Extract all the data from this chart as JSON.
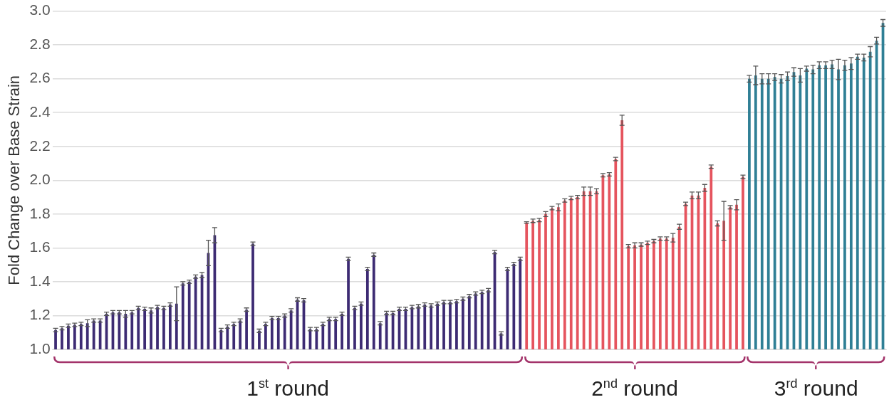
{
  "chart_data": {
    "type": "bar",
    "ylabel": "Fold Change over Base Strain",
    "ylim": [
      1.0,
      3.0
    ],
    "yticks": [
      {
        "value": 1.0,
        "label": "1.0"
      },
      {
        "value": 1.2,
        "label": "1.2"
      },
      {
        "value": 1.4,
        "label": "1.4"
      },
      {
        "value": 1.6,
        "label": "1.6"
      },
      {
        "value": 1.8,
        "label": "1.8"
      },
      {
        "value": 2.0,
        "label": "2.0"
      },
      {
        "value": 2.2,
        "label": "2.2"
      },
      {
        "value": 2.4,
        "label": "2.4"
      },
      {
        "value": 2.6,
        "label": "2.6"
      },
      {
        "value": 2.8,
        "label": "2.8"
      },
      {
        "value": 3.0,
        "label": "3.0"
      }
    ],
    "grid": "y",
    "legend": false,
    "categories": [
      null,
      null,
      null,
      null,
      null,
      null,
      null,
      null,
      null,
      null,
      null,
      null,
      null,
      null,
      null,
      null,
      null,
      null,
      null,
      null,
      null,
      null,
      null,
      null,
      null,
      null,
      null,
      null,
      null,
      null,
      null,
      null,
      null,
      null,
      null,
      null,
      null,
      null,
      null,
      null,
      null,
      null,
      null,
      null,
      null,
      null,
      null,
      null,
      null,
      null,
      null,
      null,
      null,
      null,
      null,
      null,
      null,
      null,
      null,
      null,
      null,
      null,
      null,
      null,
      null,
      null,
      null,
      null,
      null,
      null,
      null,
      null,
      null,
      null,
      null,
      null,
      null,
      null,
      null,
      null,
      null,
      null,
      null,
      null,
      null,
      null,
      null,
      null,
      null,
      null,
      null,
      null,
      null,
      null,
      null,
      null,
      null,
      null,
      null,
      null,
      null,
      null,
      null,
      null,
      null,
      null,
      null,
      null,
      null,
      null,
      null,
      null,
      null,
      null,
      null,
      null,
      null,
      null,
      null,
      null,
      null,
      null,
      null,
      null,
      null,
      null,
      null,
      null,
      null,
      null,
      null
    ],
    "series": [
      {
        "name": "1$^{st}$ round",
        "color": "#3d2b73",
        "values": [
          1.115,
          1.125,
          1.14,
          1.145,
          1.15,
          1.155,
          1.17,
          1.17,
          1.21,
          1.22,
          1.22,
          1.21,
          1.22,
          1.245,
          1.24,
          1.23,
          1.25,
          1.245,
          1.265,
          1.27,
          1.39,
          1.4,
          1.43,
          1.44,
          1.57,
          1.675,
          1.115,
          1.135,
          1.15,
          1.17,
          1.235,
          1.625,
          1.11,
          1.15,
          1.185,
          1.185,
          1.2,
          1.23,
          1.295,
          1.29,
          1.12,
          1.12,
          1.15,
          1.18,
          1.18,
          1.21,
          1.535,
          1.245,
          1.27,
          1.475,
          1.56,
          1.155,
          1.215,
          1.215,
          1.24,
          1.24,
          1.25,
          1.255,
          1.265,
          1.26,
          1.27,
          1.28,
          1.28,
          1.285,
          1.3,
          1.315,
          1.33,
          1.34,
          1.35,
          1.575,
          1.095,
          1.475,
          1.505,
          1.535,
          null,
          null,
          null,
          null,
          null,
          null,
          null,
          null,
          null,
          null,
          null,
          null,
          null,
          null,
          null,
          null,
          null,
          null,
          null,
          null,
          null,
          null,
          null,
          null,
          null,
          null,
          null,
          null,
          null,
          null,
          null,
          null,
          null,
          null,
          null,
          null,
          null,
          null,
          null,
          null,
          null,
          null,
          null,
          null,
          null,
          null,
          null,
          null,
          null,
          null,
          null,
          null,
          null,
          null,
          null,
          null,
          null
        ],
        "errors": [
          0.01,
          0.01,
          0.01,
          0.01,
          0.01,
          0.02,
          0.01,
          0.01,
          0.01,
          0.01,
          0.01,
          0.02,
          0.01,
          0.01,
          0.01,
          0.015,
          0.01,
          0.01,
          0.01,
          0.1,
          0.01,
          0.01,
          0.01,
          0.015,
          0.075,
          0.045,
          0.01,
          0.01,
          0.01,
          0.01,
          0.01,
          0.01,
          0.01,
          0.01,
          0.01,
          0.01,
          0.01,
          0.01,
          0.01,
          0.01,
          0.01,
          0.01,
          0.01,
          0.01,
          0.01,
          0.01,
          0.01,
          0.01,
          0.01,
          0.01,
          0.01,
          0.01,
          0.01,
          0.01,
          0.01,
          0.01,
          0.01,
          0.01,
          0.01,
          0.01,
          0.01,
          0.01,
          0.01,
          0.01,
          0.01,
          0.01,
          0.01,
          0.01,
          0.01,
          0.01,
          0.01,
          0.01,
          0.01,
          0.01,
          null,
          null,
          null,
          null,
          null,
          null,
          null,
          null,
          null,
          null,
          null,
          null,
          null,
          null,
          null,
          null,
          null,
          null,
          null,
          null,
          null,
          null,
          null,
          null,
          null,
          null,
          null,
          null,
          null,
          null,
          null,
          null,
          null,
          null,
          null,
          null,
          null,
          null,
          null,
          null,
          null,
          null,
          null,
          null,
          null,
          null,
          null,
          null,
          null,
          null,
          null,
          null,
          null,
          null,
          null,
          null,
          null
        ]
      },
      {
        "name": "2$^{nd}$ round",
        "color": "#e5545e",
        "values": [
          null,
          null,
          null,
          null,
          null,
          null,
          null,
          null,
          null,
          null,
          null,
          null,
          null,
          null,
          null,
          null,
          null,
          null,
          null,
          null,
          null,
          null,
          null,
          null,
          null,
          null,
          null,
          null,
          null,
          null,
          null,
          null,
          null,
          null,
          null,
          null,
          null,
          null,
          null,
          null,
          null,
          null,
          null,
          null,
          null,
          null,
          null,
          null,
          null,
          null,
          null,
          null,
          null,
          null,
          null,
          null,
          null,
          null,
          null,
          null,
          null,
          null,
          null,
          null,
          null,
          null,
          null,
          null,
          null,
          null,
          null,
          null,
          null,
          null,
          1.75,
          1.76,
          1.765,
          1.8,
          1.835,
          1.84,
          1.88,
          1.895,
          1.9,
          1.935,
          1.935,
          1.935,
          2.03,
          2.035,
          2.125,
          2.355,
          1.61,
          1.615,
          1.62,
          1.63,
          1.64,
          1.655,
          1.655,
          1.66,
          1.725,
          1.86,
          1.91,
          1.91,
          1.955,
          2.08,
          1.745,
          1.76,
          1.84,
          1.855,
          2.02,
          null,
          null,
          null,
          null,
          null,
          null,
          null,
          null,
          null,
          null,
          null,
          null,
          null,
          null,
          null,
          null,
          null,
          null,
          null,
          null,
          null,
          null
        ],
        "errors": [
          null,
          null,
          null,
          null,
          null,
          null,
          null,
          null,
          null,
          null,
          null,
          null,
          null,
          null,
          null,
          null,
          null,
          null,
          null,
          null,
          null,
          null,
          null,
          null,
          null,
          null,
          null,
          null,
          null,
          null,
          null,
          null,
          null,
          null,
          null,
          null,
          null,
          null,
          null,
          null,
          null,
          null,
          null,
          null,
          null,
          null,
          null,
          null,
          null,
          null,
          null,
          null,
          null,
          null,
          null,
          null,
          null,
          null,
          null,
          null,
          null,
          null,
          null,
          null,
          null,
          null,
          null,
          null,
          null,
          null,
          null,
          null,
          null,
          null,
          0.005,
          0.01,
          0.01,
          0.015,
          0.01,
          0.02,
          0.01,
          0.01,
          0.01,
          0.025,
          0.025,
          0.015,
          0.01,
          0.01,
          0.01,
          0.03,
          0.01,
          0.015,
          0.01,
          0.01,
          0.01,
          0.01,
          0.01,
          0.025,
          0.015,
          0.01,
          0.02,
          0.02,
          0.02,
          0.01,
          0.015,
          0.115,
          0.01,
          0.03,
          0.01,
          null,
          null,
          null,
          null,
          null,
          null,
          null,
          null,
          null,
          null,
          null,
          null,
          null,
          null,
          null,
          null,
          null,
          null,
          null,
          null,
          null,
          null
        ]
      },
      {
        "name": "3$^{rd}$ round",
        "color": "#2f7f95",
        "values": [
          null,
          null,
          null,
          null,
          null,
          null,
          null,
          null,
          null,
          null,
          null,
          null,
          null,
          null,
          null,
          null,
          null,
          null,
          null,
          null,
          null,
          null,
          null,
          null,
          null,
          null,
          null,
          null,
          null,
          null,
          null,
          null,
          null,
          null,
          null,
          null,
          null,
          null,
          null,
          null,
          null,
          null,
          null,
          null,
          null,
          null,
          null,
          null,
          null,
          null,
          null,
          null,
          null,
          null,
          null,
          null,
          null,
          null,
          null,
          null,
          null,
          null,
          null,
          null,
          null,
          null,
          null,
          null,
          null,
          null,
          null,
          null,
          null,
          null,
          null,
          null,
          null,
          null,
          null,
          null,
          null,
          null,
          null,
          null,
          null,
          null,
          null,
          null,
          null,
          null,
          null,
          null,
          null,
          null,
          null,
          null,
          null,
          null,
          null,
          null,
          null,
          null,
          null,
          null,
          null,
          null,
          null,
          null,
          null,
          2.6,
          2.62,
          2.6,
          2.6,
          2.61,
          2.6,
          2.615,
          2.64,
          2.62,
          2.66,
          2.655,
          2.68,
          2.68,
          2.685,
          2.655,
          2.68,
          2.69,
          2.73,
          2.725,
          2.76,
          2.825,
          2.93
        ],
        "errors": [
          null,
          null,
          null,
          null,
          null,
          null,
          null,
          null,
          null,
          null,
          null,
          null,
          null,
          null,
          null,
          null,
          null,
          null,
          null,
          null,
          null,
          null,
          null,
          null,
          null,
          null,
          null,
          null,
          null,
          null,
          null,
          null,
          null,
          null,
          null,
          null,
          null,
          null,
          null,
          null,
          null,
          null,
          null,
          null,
          null,
          null,
          null,
          null,
          null,
          null,
          null,
          null,
          null,
          null,
          null,
          null,
          null,
          null,
          null,
          null,
          null,
          null,
          null,
          null,
          null,
          null,
          null,
          null,
          null,
          null,
          null,
          null,
          null,
          null,
          null,
          null,
          null,
          null,
          null,
          null,
          null,
          null,
          null,
          null,
          null,
          null,
          null,
          null,
          null,
          null,
          null,
          null,
          null,
          null,
          null,
          null,
          null,
          null,
          null,
          null,
          null,
          null,
          null,
          null,
          null,
          null,
          null,
          null,
          null,
          0.02,
          0.055,
          0.03,
          0.03,
          0.02,
          0.025,
          0.025,
          0.025,
          0.04,
          0.015,
          0.025,
          0.02,
          0.02,
          0.025,
          0.06,
          0.03,
          0.035,
          0.015,
          0.02,
          0.03,
          0.02,
          0.02
        ]
      }
    ]
  }
}
